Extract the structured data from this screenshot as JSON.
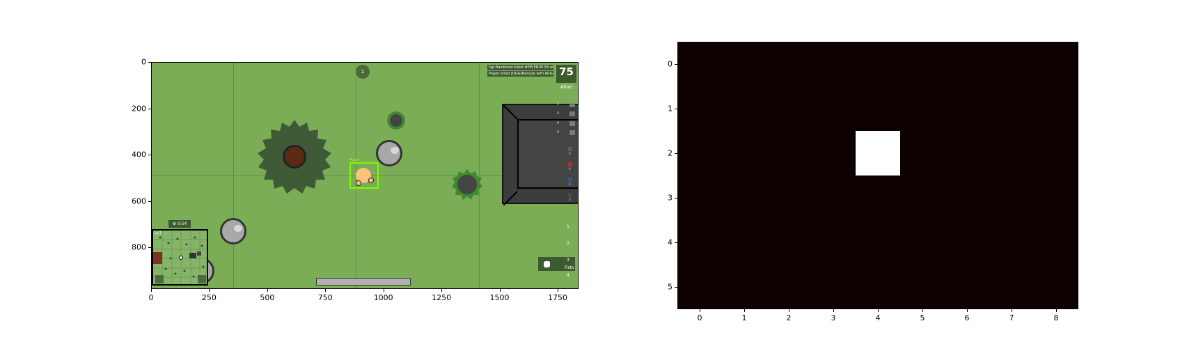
{
  "game_view": {
    "alive_count": "75",
    "alive_label": "Alive",
    "top_counter": "1",
    "killfeed": [
      "Sgt.Bandicoot killed #PM ENUP-58 with AUG-18",
      "Player killed [DGG]Nano2e with AUG-18"
    ],
    "gas_timer": "☢ 0:54",
    "minimap_label": "Lv.1",
    "player_label": "Player",
    "ammo_counts": [
      "0",
      "0",
      "0",
      "0"
    ],
    "scope_counts": [
      "0",
      "0",
      "0",
      "0"
    ],
    "scope_colors": [
      "#6b5a44",
      "#a83232",
      "#34558a",
      "#4a4a4a"
    ],
    "weapon_slots": [
      "1",
      "2",
      "3",
      "4"
    ],
    "active_weapon_label": "Fists",
    "colors": {
      "grass": "#7bad57",
      "grid": "#5f8f45",
      "tree_dark": "#3f5a36",
      "bush": "#3f8a2e",
      "building_roof": "#3d3d3d",
      "player": "#f7c47a",
      "selection_box": "#7cfc00"
    }
  },
  "axes": {
    "left": {
      "x_ticks": [
        "0",
        "250",
        "500",
        "750",
        "1000",
        "1250",
        "1500",
        "1750"
      ],
      "y_ticks": [
        "0",
        "200",
        "400",
        "600",
        "800"
      ]
    },
    "right": {
      "x_ticks": [
        "0",
        "1",
        "2",
        "3",
        "4",
        "5",
        "6",
        "7",
        "8"
      ],
      "y_ticks": [
        "0",
        "1",
        "2",
        "3",
        "4",
        "5"
      ]
    }
  },
  "chart_data": [
    {
      "type": "image",
      "x_ticks": [
        0,
        250,
        500,
        750,
        1000,
        1250,
        1500,
        1750
      ],
      "y_ticks": [
        0,
        200,
        400,
        600,
        800
      ],
      "xlim": [
        0,
        1840
      ],
      "ylim": [
        980,
        0
      ],
      "title": "",
      "xlabel": "",
      "ylabel": ""
    },
    {
      "type": "heatmap",
      "rows": 6,
      "cols": 9,
      "values": [
        [
          0,
          0,
          0,
          0,
          0,
          0,
          0,
          0,
          0
        ],
        [
          0,
          0,
          0,
          0,
          0,
          0,
          0,
          0,
          0
        ],
        [
          0,
          0,
          0,
          0,
          1,
          0,
          0,
          0,
          0
        ],
        [
          0,
          0,
          0,
          0,
          0,
          0,
          0,
          0,
          0
        ],
        [
          0,
          0,
          0,
          0,
          0,
          0,
          0,
          0,
          0
        ],
        [
          0,
          0,
          0,
          0,
          0,
          0,
          0,
          0,
          0
        ]
      ],
      "colormap": [
        "#0c0000",
        "#ffffff"
      ],
      "title": "",
      "xlabel": "",
      "ylabel": ""
    }
  ]
}
